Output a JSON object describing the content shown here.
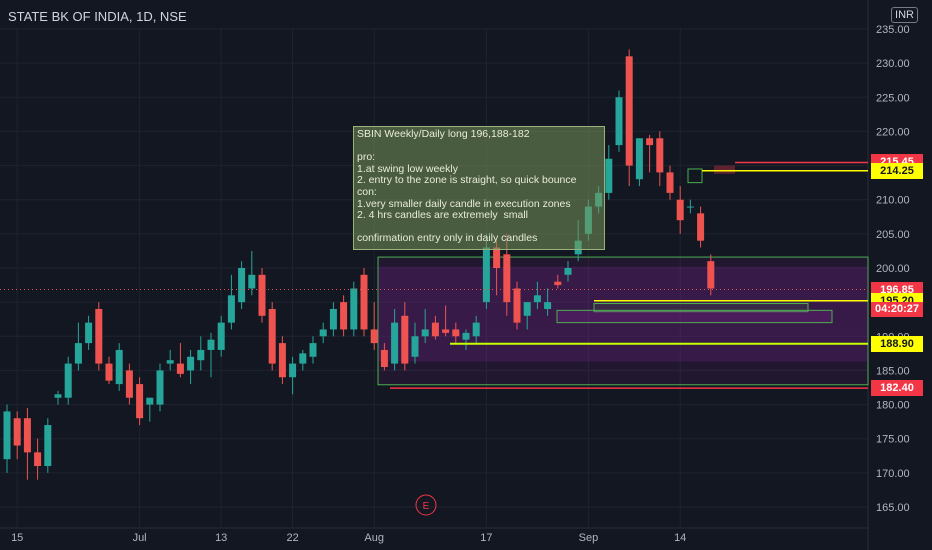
{
  "header": {
    "symbol_title": "STATE BK OF INDIA, 1D, NSE",
    "currency": "INR"
  },
  "event_marker": "E",
  "note": {
    "text": "SBIN Weekly/Daily long 196,188-182\n\npro:\n1.at swing low weekly\n2. entry to the zone is straight, so quick bounce\ncon:\n1.very smaller daily candle in execution zones\n2. 4 hrs candles are extremely  small\n\nconfirmation entry only in daily candles"
  },
  "price_tags": [
    {
      "label": "215.45",
      "value": 215.45,
      "bg": "#f23645",
      "fg": "#ffffff"
    },
    {
      "label": "214.25",
      "value": 214.25,
      "bg": "#ffff00",
      "fg": "#131722"
    },
    {
      "label": "196.85",
      "value": 196.85,
      "bg": "#f23645",
      "fg": "#ffffff"
    },
    {
      "label": "195.20",
      "value": 195.2,
      "bg": "#ffff00",
      "fg": "#131722"
    },
    {
      "label": "188.90",
      "value": 188.9,
      "bg": "#ffff00",
      "fg": "#131722"
    },
    {
      "label": "182.40",
      "value": 182.4,
      "bg": "#f23645",
      "fg": "#ffffff"
    }
  ],
  "countdown": "04:20:27",
  "chart_data": {
    "type": "candlestick",
    "title": "STATE BK OF INDIA, 1D, NSE",
    "ylim": [
      162.5,
      236.5
    ],
    "y_ticks": [
      165,
      170,
      175,
      180,
      185,
      190,
      195,
      200,
      205,
      210,
      215,
      220,
      225,
      230,
      235
    ],
    "y_tick_labels": [
      "165.00",
      "170.00",
      "175.00",
      "180.00",
      "185.00",
      "190.00",
      "195.00",
      "200.00",
      "205.00",
      "210.00",
      "215.00",
      "220.00",
      "225.00",
      "230.00",
      "235.00"
    ],
    "x_tick_labels": [
      {
        "label": "15",
        "index": 1
      },
      {
        "label": "Jul",
        "index": 13
      },
      {
        "label": "13",
        "index": 21
      },
      {
        "label": "22",
        "index": 28
      },
      {
        "label": "Aug",
        "index": 36
      },
      {
        "label": "17",
        "index": 47
      },
      {
        "label": "Sep",
        "index": 57
      },
      {
        "label": "14",
        "index": 66
      }
    ],
    "last_price": 196.85,
    "colors": {
      "up": "#26a69a",
      "down": "#ef5350"
    },
    "candles": [
      {
        "o": 172,
        "h": 180,
        "l": 170,
        "c": 179
      },
      {
        "o": 178,
        "h": 179,
        "l": 172,
        "c": 174
      },
      {
        "o": 178,
        "h": 179.5,
        "l": 169,
        "c": 173
      },
      {
        "o": 173,
        "h": 175,
        "l": 169,
        "c": 171
      },
      {
        "o": 171,
        "h": 178,
        "l": 170,
        "c": 177
      },
      {
        "o": 181,
        "h": 182,
        "l": 180,
        "c": 181.5
      },
      {
        "o": 181,
        "h": 187,
        "l": 180,
        "c": 186
      },
      {
        "o": 186,
        "h": 192,
        "l": 185,
        "c": 189
      },
      {
        "o": 189,
        "h": 193,
        "l": 188,
        "c": 192
      },
      {
        "o": 194,
        "h": 195,
        "l": 185,
        "c": 186
      },
      {
        "o": 186,
        "h": 187,
        "l": 183,
        "c": 183.5
      },
      {
        "o": 183,
        "h": 189,
        "l": 182,
        "c": 188
      },
      {
        "o": 185,
        "h": 186,
        "l": 180,
        "c": 181
      },
      {
        "o": 183,
        "h": 184,
        "l": 177,
        "c": 178
      },
      {
        "o": 180,
        "h": 181,
        "l": 177.5,
        "c": 181
      },
      {
        "o": 180,
        "h": 186,
        "l": 179,
        "c": 185
      },
      {
        "o": 186,
        "h": 188,
        "l": 185,
        "c": 186.5
      },
      {
        "o": 186,
        "h": 189,
        "l": 184,
        "c": 184.5
      },
      {
        "o": 185,
        "h": 188,
        "l": 183,
        "c": 187
      },
      {
        "o": 186.5,
        "h": 190,
        "l": 185,
        "c": 188
      },
      {
        "o": 188,
        "h": 190.5,
        "l": 184,
        "c": 189.5
      },
      {
        "o": 188,
        "h": 193,
        "l": 187,
        "c": 192
      },
      {
        "o": 192,
        "h": 199,
        "l": 191,
        "c": 196
      },
      {
        "o": 195,
        "h": 201,
        "l": 194,
        "c": 200
      },
      {
        "o": 197,
        "h": 202.5,
        "l": 196,
        "c": 199
      },
      {
        "o": 199,
        "h": 200,
        "l": 192,
        "c": 193
      },
      {
        "o": 194,
        "h": 195,
        "l": 185,
        "c": 186
      },
      {
        "o": 189,
        "h": 190,
        "l": 183,
        "c": 184
      },
      {
        "o": 184,
        "h": 187,
        "l": 181.5,
        "c": 186
      },
      {
        "o": 186,
        "h": 188,
        "l": 185,
        "c": 187.5
      },
      {
        "o": 187,
        "h": 190,
        "l": 186,
        "c": 189
      },
      {
        "o": 190,
        "h": 192,
        "l": 189,
        "c": 191
      },
      {
        "o": 191,
        "h": 195,
        "l": 190,
        "c": 194
      },
      {
        "o": 195,
        "h": 196,
        "l": 190,
        "c": 191
      },
      {
        "o": 191,
        "h": 198,
        "l": 190,
        "c": 197
      },
      {
        "o": 199,
        "h": 200,
        "l": 190,
        "c": 191
      },
      {
        "o": 191,
        "h": 195,
        "l": 188,
        "c": 189
      },
      {
        "o": 188,
        "h": 189,
        "l": 185,
        "c": 185.5
      },
      {
        "o": 186,
        "h": 194,
        "l": 185,
        "c": 192
      },
      {
        "o": 193,
        "h": 195,
        "l": 185,
        "c": 186
      },
      {
        "o": 187,
        "h": 192,
        "l": 186,
        "c": 190
      },
      {
        "o": 190,
        "h": 194,
        "l": 189,
        "c": 191
      },
      {
        "o": 192,
        "h": 193,
        "l": 189.5,
        "c": 190
      },
      {
        "o": 191,
        "h": 194.5,
        "l": 190,
        "c": 190.5
      },
      {
        "o": 191,
        "h": 192,
        "l": 189,
        "c": 190
      },
      {
        "o": 189.5,
        "h": 191,
        "l": 188,
        "c": 190.5
      },
      {
        "o": 190,
        "h": 193,
        "l": 189,
        "c": 192
      },
      {
        "o": 195,
        "h": 205,
        "l": 194,
        "c": 203
      },
      {
        "o": 203,
        "h": 204,
        "l": 196,
        "c": 200
      },
      {
        "o": 202,
        "h": 205,
        "l": 193,
        "c": 195
      },
      {
        "o": 197,
        "h": 198,
        "l": 191,
        "c": 192
      },
      {
        "o": 193,
        "h": 195,
        "l": 191,
        "c": 195
      },
      {
        "o": 195,
        "h": 198,
        "l": 194,
        "c": 196
      },
      {
        "o": 194,
        "h": 197,
        "l": 193,
        "c": 195
      },
      {
        "o": 198,
        "h": 199,
        "l": 197,
        "c": 197.5
      },
      {
        "o": 199,
        "h": 201,
        "l": 198,
        "c": 200
      },
      {
        "o": 202,
        "h": 207,
        "l": 201,
        "c": 204
      },
      {
        "o": 205,
        "h": 210,
        "l": 204,
        "c": 209
      },
      {
        "o": 209,
        "h": 212,
        "l": 208,
        "c": 211
      },
      {
        "o": 211,
        "h": 218,
        "l": 210,
        "c": 216
      },
      {
        "o": 218,
        "h": 226,
        "l": 217,
        "c": 225
      },
      {
        "o": 231,
        "h": 232,
        "l": 212,
        "c": 215
      },
      {
        "o": 213,
        "h": 219,
        "l": 212,
        "c": 219
      },
      {
        "o": 219,
        "h": 219.5,
        "l": 214,
        "c": 218
      },
      {
        "o": 219,
        "h": 220,
        "l": 212,
        "c": 214
      },
      {
        "o": 214,
        "h": 215,
        "l": 210,
        "c": 211
      },
      {
        "o": 210,
        "h": 212,
        "l": 205,
        "c": 207
      },
      {
        "o": 209,
        "h": 210,
        "l": 208,
        "c": 209
      },
      {
        "o": 208,
        "h": 209,
        "l": 203,
        "c": 204
      },
      {
        "o": 201,
        "h": 202,
        "l": 196,
        "c": 197
      }
    ]
  }
}
